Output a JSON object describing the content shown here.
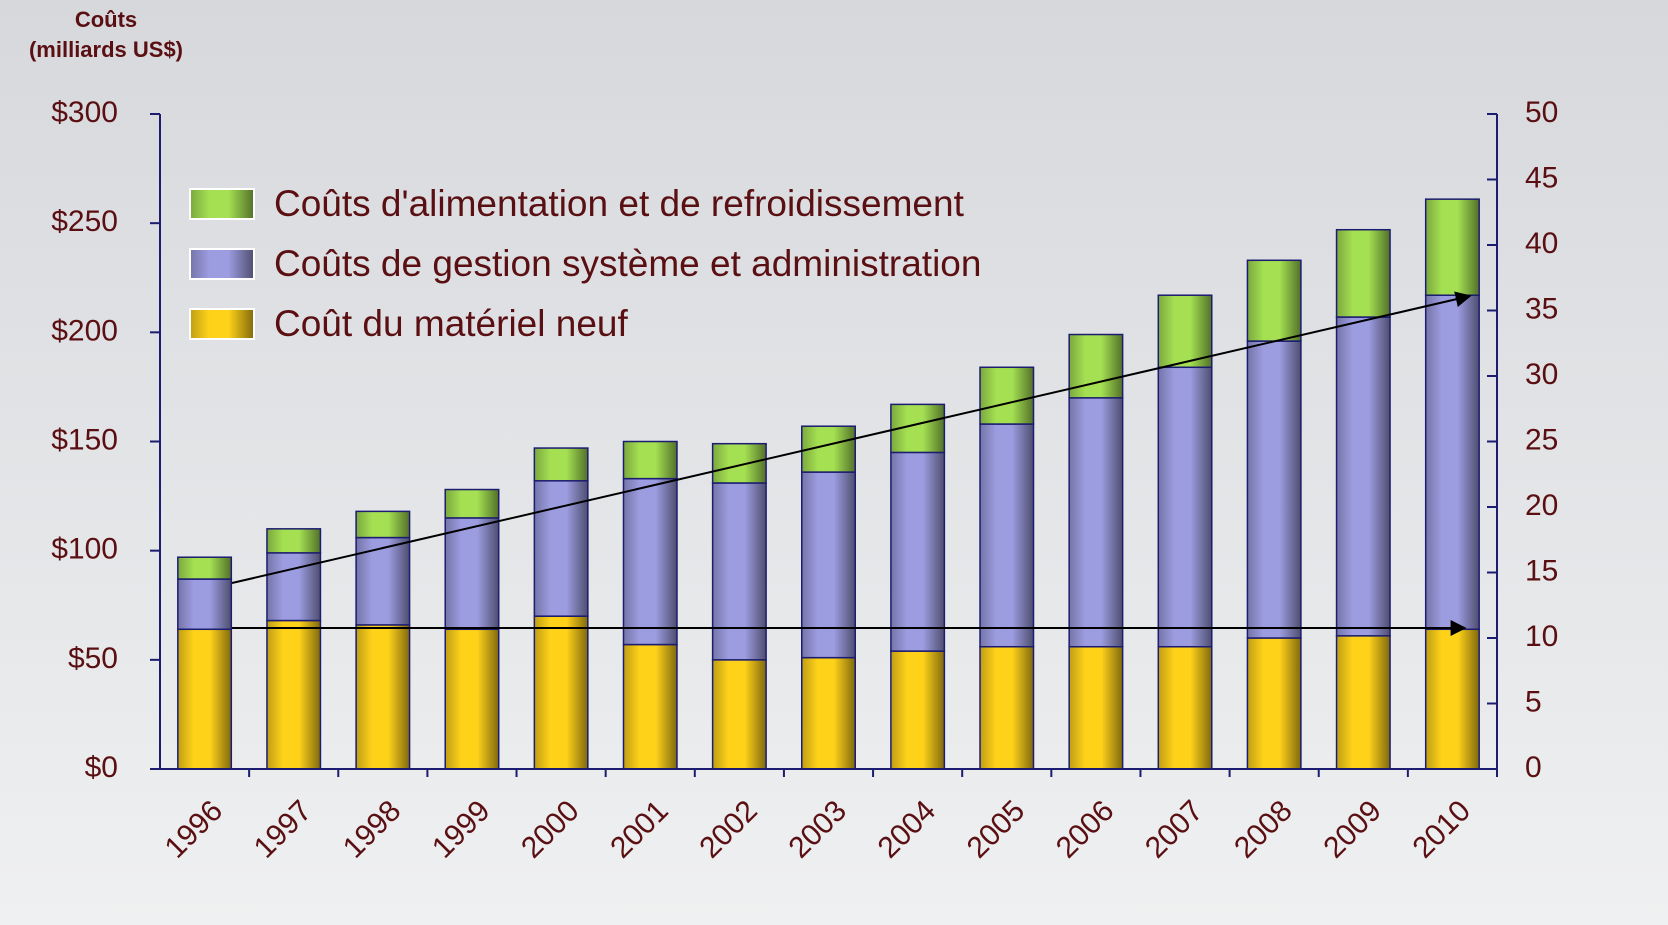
{
  "chart_data": {
    "type": "stacked_bar",
    "ylabel": [
      "Coûts",
      "(milliards US$)"
    ],
    "categories": [
      "1996",
      "1997",
      "1998",
      "1999",
      "2000",
      "2001",
      "2002",
      "2003",
      "2004",
      "2005",
      "2006",
      "2007",
      "2008",
      "2009",
      "2010"
    ],
    "series": [
      {
        "name": "Coût du matériel neuf",
        "color": "#ffd21a",
        "values": [
          64,
          68,
          66,
          64,
          70,
          57,
          50,
          51,
          54,
          56,
          56,
          56,
          60,
          61,
          64
        ]
      },
      {
        "name": "Coûts de gestion système et administration",
        "color": "#9c9ce0",
        "values": [
          23,
          31,
          40,
          51,
          62,
          76,
          81,
          85,
          91,
          102,
          114,
          128,
          136,
          146,
          153
        ]
      },
      {
        "name": "Coûts d'alimentation et de refroidissement",
        "color": "#a4e052",
        "values": [
          10,
          11,
          12,
          13,
          15,
          17,
          18,
          21,
          22,
          26,
          29,
          33,
          37,
          40,
          44
        ]
      }
    ],
    "ylim": [
      0,
      300
    ],
    "yticks": [
      {
        "value": 0,
        "label": "$0"
      },
      {
        "value": 50,
        "label": "$50"
      },
      {
        "value": 100,
        "label": "$100"
      },
      {
        "value": 150,
        "label": "$150"
      },
      {
        "value": 200,
        "label": "$200"
      },
      {
        "value": 250,
        "label": "$250"
      },
      {
        "value": 300,
        "label": "$300"
      }
    ],
    "y2lim": [
      0,
      50
    ],
    "y2ticks": [
      0,
      5,
      10,
      15,
      20,
      25,
      30,
      35,
      40,
      45,
      50
    ],
    "legend": "upper left"
  }
}
